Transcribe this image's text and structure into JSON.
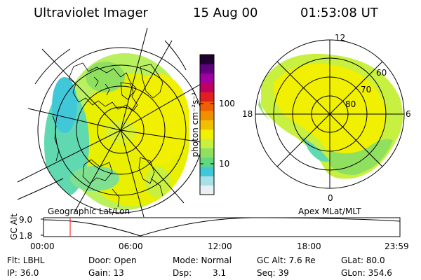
{
  "header": {
    "instrument": "Ultraviolet Imager",
    "date": "15 Aug 00",
    "time": "01:53:08 UT"
  },
  "colorbar": {
    "unit_label": "photon cm⁻²s⁻¹",
    "ticks": [
      "100",
      "10"
    ],
    "palette": [
      "#e8f0f4",
      "#a8e0e8",
      "#40c8d8",
      "#60d880",
      "#90e060",
      "#c8f040",
      "#f0f000",
      "#f0c000",
      "#f09000",
      "#f06000",
      "#e02020",
      "#c00060",
      "#a000a0",
      "#600080",
      "#200030"
    ]
  },
  "left_map": {
    "caption": "Geographic Lat/Lon"
  },
  "right_map": {
    "caption": "Apex MLat/MLT",
    "mlt_labels": [
      "12",
      "18",
      "6",
      "0"
    ],
    "mlat_labels": [
      "60",
      "70",
      "80"
    ]
  },
  "altitude_plot": {
    "ylabel": "GC Alt",
    "yticks": [
      "9.0",
      "1.8"
    ],
    "xticks": [
      "00:00",
      "06:00",
      "12:00",
      "18:00",
      "23:59"
    ],
    "current_time_marker_color": "#ff0000"
  },
  "status": {
    "filter": "Flt: LBHL",
    "ip": "IP: 36.0",
    "door": "Door: Open",
    "gain": "Gain: 13",
    "mode": "Mode: Normal",
    "dsp_label": "Dsp:",
    "dsp_value": "3.1",
    "gc_alt": "GC Alt: 7.6 Re",
    "seq": "Seq: 39",
    "glat": "GLat: 80.0",
    "glon": "GLon: 354.6"
  }
}
